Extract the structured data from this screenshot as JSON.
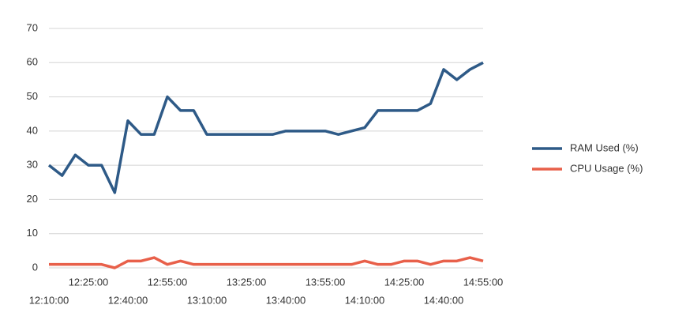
{
  "chart_data": {
    "type": "line",
    "categories": [
      "12:10:00",
      null,
      null,
      "12:25:00",
      null,
      null,
      "12:40:00",
      null,
      null,
      "12:55:00",
      null,
      null,
      "13:10:00",
      null,
      null,
      "13:25:00",
      null,
      null,
      "13:40:00",
      null,
      null,
      "13:55:00",
      null,
      null,
      "14:10:00",
      null,
      null,
      "14:25:00",
      null,
      null,
      "14:40:00",
      null,
      null,
      "14:55:00"
    ],
    "series": [
      {
        "name": "RAM Used (%)",
        "color": "#2e5a87",
        "values": [
          30,
          27,
          33,
          30,
          30,
          22,
          43,
          39,
          39,
          50,
          46,
          46,
          39,
          39,
          39,
          39,
          39,
          39,
          40,
          40,
          40,
          40,
          39,
          40,
          41,
          46,
          46,
          46,
          46,
          48,
          58,
          55,
          58,
          60
        ]
      },
      {
        "name": "CPU Usage (%)",
        "color": "#e8604a",
        "values": [
          1,
          1,
          1,
          1,
          1,
          0,
          2,
          2,
          3,
          1,
          2,
          1,
          1,
          1,
          1,
          1,
          1,
          1,
          1,
          1,
          1,
          1,
          1,
          1,
          2,
          1,
          1,
          2,
          2,
          1,
          2,
          2,
          3,
          2
        ]
      }
    ],
    "ylim": [
      0,
      70
    ],
    "yticks": [
      0,
      10,
      20,
      30,
      40,
      50,
      60,
      70
    ],
    "grid": true,
    "legend": "right"
  }
}
